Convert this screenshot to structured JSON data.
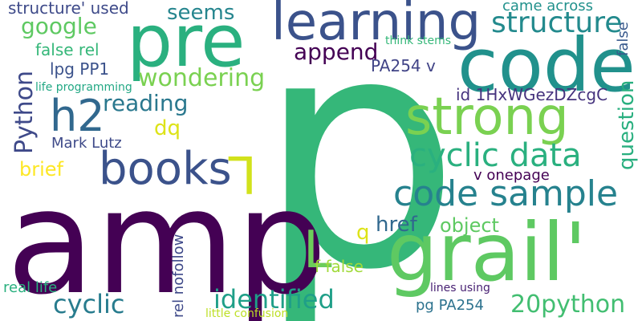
{
  "cloud": {
    "background": "#ffffff",
    "words": [
      {
        "text": "p",
        "color": "#35b779"
      },
      {
        "text": "amp",
        "color": "#440154"
      },
      {
        "text": "code",
        "color": "#21918c"
      },
      {
        "text": "grail'",
        "color": "#5ec962"
      },
      {
        "text": "pre",
        "color": "#2ab07f"
      },
      {
        "text": "learning",
        "color": "#3b528b"
      },
      {
        "text": "strong",
        "color": "#7ad151"
      },
      {
        "text": "books",
        "color": "#3b528b"
      },
      {
        "text": "h2",
        "color": "#31688e"
      },
      {
        "text": "code sample",
        "color": "#26828e"
      },
      {
        "text": "cyclic data",
        "color": "#2ab07f"
      },
      {
        "text": "L",
        "color": "#6ccd5a"
      },
      {
        "text": "L",
        "color": "#d2e21b"
      },
      {
        "text": "structure",
        "color": "#238a8d"
      },
      {
        "text": "identified",
        "color": "#1f9f88"
      },
      {
        "text": "cyclic",
        "color": "#287c8e"
      },
      {
        "text": "20python",
        "color": "#42be71"
      },
      {
        "text": "Python",
        "color": "#3e4989"
      },
      {
        "text": "wondering",
        "color": "#7ad151"
      },
      {
        "text": "google",
        "color": "#5ec962"
      },
      {
        "text": "reading",
        "color": "#2a788e"
      },
      {
        "text": "append",
        "color": "#440154"
      },
      {
        "text": "seems",
        "color": "#25858e"
      },
      {
        "text": "question",
        "color": "#29af7f"
      },
      {
        "text": "structure' used",
        "color": "#3e4a89"
      },
      {
        "text": "href",
        "color": "#31688e"
      },
      {
        "text": "object",
        "color": "#5ec962"
      },
      {
        "text": "brief",
        "color": "#fde725"
      },
      {
        "text": "dq",
        "color": "#dde318"
      },
      {
        "text": "q",
        "color": "#dde318"
      },
      {
        "text": "came across",
        "color": "#21918c"
      },
      {
        "text": "id 1HxWGezDZcgC",
        "color": "#46337e"
      },
      {
        "text": "f false",
        "color": "#a0da39"
      },
      {
        "text": "PA254 v",
        "color": "#414487"
      },
      {
        "text": "false rel",
        "color": "#35b779"
      },
      {
        "text": "lpg PP1",
        "color": "#3b528b"
      },
      {
        "text": "Mark Lutz",
        "color": "#3e4a89"
      },
      {
        "text": "v onepage",
        "color": "#440154"
      },
      {
        "text": "rel nofollow",
        "color": "#3e4989"
      },
      {
        "text": "pg PA254",
        "color": "#2c728e"
      },
      {
        "text": "real life",
        "color": "#2ab07f"
      },
      {
        "text": "lines using",
        "color": "#482173"
      },
      {
        "text": "life programming",
        "color": "#22a884"
      },
      {
        "text": "think stems",
        "color": "#35b779"
      },
      {
        "text": "little confusion",
        "color": "#bddf26"
      },
      {
        "text": "false",
        "color": "#38598c"
      }
    ]
  }
}
